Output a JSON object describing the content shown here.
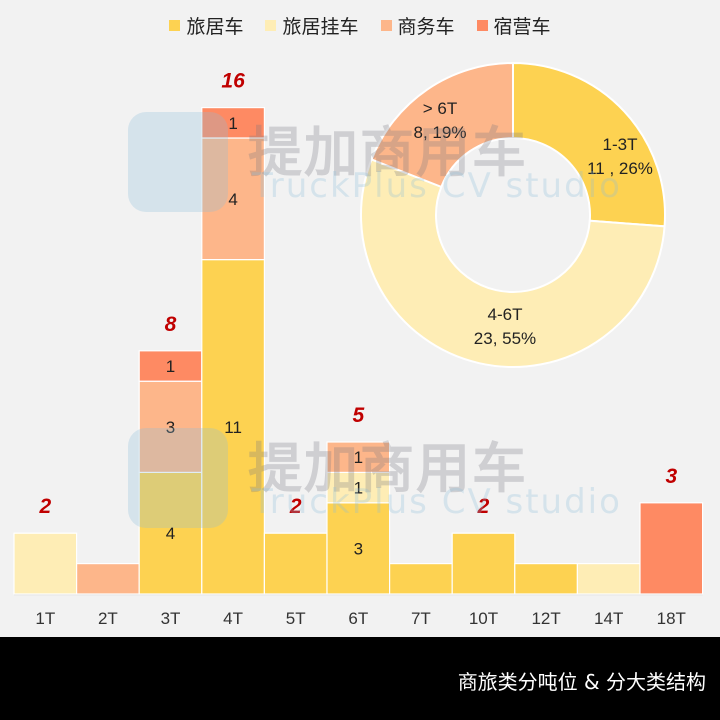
{
  "legend": [
    {
      "label": "旅居车",
      "color": "#FDD251"
    },
    {
      "label": "旅居挂车",
      "color": "#FEEDB5"
    },
    {
      "label": "商务车",
      "color": "#FDB68A"
    },
    {
      "label": "宿营车",
      "color": "#FE8A63"
    }
  ],
  "footer": {
    "title": "商旅类分吨位 & 分大类结构"
  },
  "watermark": {
    "cn": "提加商用车",
    "en": "TruckPlus CV studio"
  },
  "chart_data": [
    {
      "type": "bar",
      "stacked": true,
      "title": "",
      "xlabel": "",
      "ylabel": "",
      "categories": [
        "1T",
        "2T",
        "3T",
        "4T",
        "5T",
        "6T",
        "7T",
        "10T",
        "12T",
        "14T",
        "18T"
      ],
      "series": [
        {
          "name": "旅居车",
          "color": "#FDD251",
          "values": [
            0,
            0,
            4,
            11,
            2,
            3,
            1,
            2,
            1,
            0,
            0
          ]
        },
        {
          "name": "旅居挂车",
          "color": "#FEEDB5",
          "values": [
            2,
            0,
            0,
            0,
            0,
            1,
            0,
            0,
            0,
            1,
            0
          ]
        },
        {
          "name": "商务车",
          "color": "#FDB68A",
          "values": [
            0,
            1,
            3,
            4,
            0,
            1,
            0,
            0,
            0,
            0,
            0
          ]
        },
        {
          "name": "宿营车",
          "color": "#FE8A63",
          "values": [
            0,
            0,
            1,
            1,
            0,
            0,
            0,
            0,
            0,
            0,
            3
          ]
        }
      ],
      "segment_labels_shown": {
        "3T": [
          4,
          3,
          1
        ],
        "4T": [
          11,
          4,
          1
        ],
        "6T": [
          3,
          1,
          1
        ]
      },
      "total_labels": {
        "1T": 2,
        "3T": 8,
        "4T": 16,
        "5T": 2,
        "6T": 5,
        "10T": 2,
        "18T": 3
      },
      "total_label_color": "#C00000",
      "grid": false,
      "legend_position": "top"
    },
    {
      "type": "pie",
      "donut": true,
      "slices": [
        {
          "label": "1-3T",
          "value": 11,
          "percent": 26,
          "color": "#FDD251",
          "text": "11 , 26%"
        },
        {
          "label": "4-6T",
          "value": 23,
          "percent": 55,
          "color": "#FEEDB5",
          "text": "23, 55%"
        },
        {
          "label": "> 6T",
          "value": 8,
          "percent": 19,
          "color": "#FDB68A",
          "text": "8, 19%"
        }
      ]
    }
  ]
}
